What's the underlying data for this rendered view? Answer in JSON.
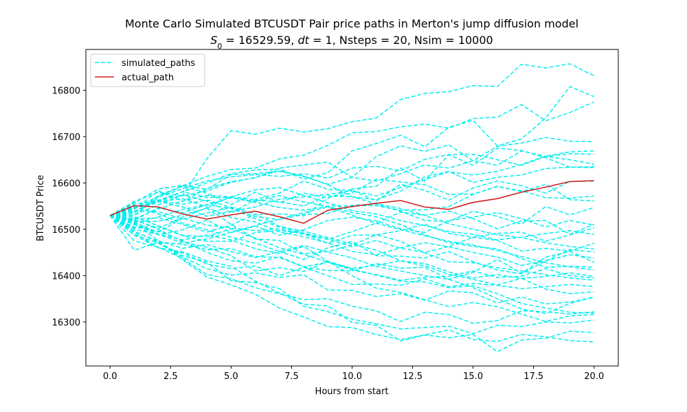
{
  "chart_data": {
    "type": "line",
    "title": "Monte Carlo Simulated BTCUSDT Pair price paths in Merton's jump diffusion model",
    "subtitle": {
      "s0_symbol": "S",
      "s0_sub": "0",
      "s0_value": " = 16529.59, ",
      "dt_symbol": "dt",
      "rest": " = 1, Nsteps = 20, Nsim = 10000"
    },
    "xlabel": "Hours from start",
    "ylabel": "BTCUSDT Price",
    "xlim": [
      -1,
      21
    ],
    "ylim": [
      16205,
      16888
    ],
    "xticks": [
      0,
      2.5,
      5,
      7.5,
      10,
      12.5,
      15,
      17.5,
      20
    ],
    "xtick_labels": [
      "0.0",
      "2.5",
      "5.0",
      "7.5",
      "10.0",
      "12.5",
      "15.0",
      "17.5",
      "20.0"
    ],
    "yticks": [
      16300,
      16400,
      16500,
      16600,
      16700,
      16800
    ],
    "ytick_labels": [
      "16300",
      "16400",
      "16500",
      "16600",
      "16700",
      "16800"
    ],
    "legend": {
      "position": "top-left",
      "entries": [
        {
          "label": "simulated_paths",
          "color": "#00f0f0",
          "style": "dashed"
        },
        {
          "label": "actual_path",
          "color": "#d62020",
          "style": "solid"
        }
      ]
    },
    "colors": {
      "simulated": "#00eeee",
      "actual": "#d21f1f"
    },
    "x": [
      0,
      1,
      2,
      3,
      4,
      5,
      6,
      7,
      8,
      9,
      10,
      11,
      12,
      13,
      14,
      15,
      16,
      17,
      18,
      19,
      20
    ],
    "series": [
      {
        "name": "actual_path",
        "values": [
          16529.59,
          16551,
          16548,
          16533,
          16522,
          16531,
          16539,
          16527,
          16513,
          16541,
          16549,
          16556,
          16562,
          16548,
          16543,
          16558,
          16566,
          16580,
          16591,
          16603,
          16605
        ]
      },
      {
        "name": "simulated_paths",
        "values": [
          16529.59,
          16543,
          16583,
          16560,
          16588,
          16603,
          16611,
          16632,
          16639,
          16645,
          16612,
          16657,
          16680,
          16668,
          16682,
          16648,
          16679,
          16686,
          16698,
          16690,
          16689
        ]
      },
      {
        "name": "simulated_paths",
        "values": [
          16529.59,
          16548,
          16562,
          16573,
          16652,
          16713,
          16705,
          16718,
          16710,
          16717,
          16732,
          16740,
          16780,
          16793,
          16797,
          16810,
          16808,
          16856,
          16848,
          16857,
          16831
        ]
      },
      {
        "name": "simulated_paths",
        "values": [
          16529.59,
          16535,
          16573,
          16594,
          16614,
          16629,
          16632,
          16652,
          16660,
          16681,
          16708,
          16711,
          16721,
          16727,
          16718,
          16739,
          16742,
          16769,
          16734,
          16752,
          16775
        ]
      },
      {
        "name": "simulated_paths",
        "values": [
          16529.59,
          16539,
          16559,
          16581,
          16600,
          16620,
          16628,
          16630,
          16608,
          16622,
          16669,
          16685,
          16703,
          16678,
          16720,
          16735,
          16680,
          16695,
          16740,
          16808,
          16786
        ]
      },
      {
        "name": "simulated_paths",
        "values": [
          16529.59,
          16530,
          16569,
          16588,
          16604,
          16613,
          16618,
          16614,
          16620,
          16610,
          16632,
          16636,
          16626,
          16651,
          16661,
          16638,
          16675,
          16670,
          16654,
          16634,
          16635
        ]
      },
      {
        "name": "simulated_paths",
        "values": [
          16529.59,
          16522,
          16525,
          16510,
          16494,
          16509,
          16532,
          16533,
          16529,
          16567,
          16587,
          16593,
          16632,
          16604,
          16661,
          16662,
          16650,
          16638,
          16657,
          16650,
          16640
        ]
      },
      {
        "name": "simulated_paths",
        "values": [
          16529.59,
          16546,
          16571,
          16593,
          16578,
          16553,
          16580,
          16557,
          16578,
          16568,
          16578,
          16608,
          16602,
          16596,
          16575,
          16576,
          16592,
          16583,
          16568,
          16567,
          16572
        ]
      },
      {
        "name": "simulated_paths",
        "values": [
          16529.59,
          16520,
          16546,
          16536,
          16553,
          16568,
          16558,
          16547,
          16541,
          16550,
          16551,
          16551,
          16541,
          16542,
          16549,
          16575,
          16593,
          16581,
          16597,
          16564,
          16561
        ]
      },
      {
        "name": "simulated_paths",
        "values": [
          16529.59,
          16548,
          16561,
          16554,
          16563,
          16547,
          16527,
          16521,
          16532,
          16534,
          16552,
          16554,
          16539,
          16519,
          16517,
          16539,
          16528,
          16511,
          16549,
          16531,
          16547
        ]
      },
      {
        "name": "simulated_paths",
        "values": [
          16529.59,
          16511,
          16494,
          16524,
          16509,
          16503,
          16497,
          16501,
          16489,
          16478,
          16495,
          16513,
          16537,
          16530,
          16539,
          16523,
          16501,
          16518,
          16519,
          16489,
          16511
        ]
      },
      {
        "name": "simulated_paths",
        "values": [
          16529.59,
          16503,
          16507,
          16486,
          16474,
          16474,
          16493,
          16497,
          16492,
          16479,
          16462,
          16476,
          16459,
          16450,
          16463,
          16483,
          16491,
          16494,
          16474,
          16488,
          16503
        ]
      },
      {
        "name": "simulated_paths",
        "values": [
          16529.59,
          16517,
          16517,
          16531,
          16545,
          16511,
          16479,
          16476,
          16447,
          16452,
          16466,
          16488,
          16497,
          16511,
          16491,
          16483,
          16476,
          16453,
          16459,
          16453,
          16470
        ]
      },
      {
        "name": "simulated_paths",
        "values": [
          16529.59,
          16515,
          16475,
          16459,
          16467,
          16452,
          16439,
          16452,
          16435,
          16460,
          16474,
          16443,
          16442,
          16438,
          16452,
          16430,
          16412,
          16404,
          16432,
          16456,
          16451
        ]
      },
      {
        "name": "simulated_paths",
        "values": [
          16529.59,
          16496,
          16472,
          16468,
          16456,
          16458,
          16441,
          16439,
          16419,
          16411,
          16410,
          16426,
          16416,
          16418,
          16392,
          16407,
          16435,
          16405,
          16440,
          16452,
          16429
        ]
      },
      {
        "name": "simulated_paths",
        "values": [
          16529.59,
          16505,
          16496,
          16475,
          16450,
          16432,
          16427,
          16441,
          16419,
          16429,
          16412,
          16402,
          16390,
          16396,
          16399,
          16410,
          16396,
          16399,
          16415,
          16400,
          16395
        ]
      },
      {
        "name": "simulated_paths",
        "values": [
          16529.59,
          16493,
          16460,
          16449,
          16425,
          16415,
          16421,
          16400,
          16418,
          16400,
          16381,
          16382,
          16379,
          16393,
          16376,
          16383,
          16379,
          16372,
          16376,
          16381,
          16376
        ]
      },
      {
        "name": "simulated_paths",
        "values": [
          16529.59,
          16488,
          16470,
          16440,
          16415,
          16401,
          16406,
          16396,
          16402,
          16369,
          16368,
          16355,
          16361,
          16347,
          16367,
          16363,
          16341,
          16354,
          16339,
          16343,
          16353
        ]
      },
      {
        "name": "simulated_paths",
        "values": [
          16529.59,
          16475,
          16461,
          16437,
          16402,
          16393,
          16374,
          16361,
          16348,
          16350,
          16334,
          16324,
          16301,
          16321,
          16316,
          16297,
          16303,
          16324,
          16322,
          16317,
          16322
        ]
      },
      {
        "name": "simulated_paths",
        "values": [
          16529.59,
          16455,
          16472,
          16443,
          16429,
          16389,
          16385,
          16372,
          16334,
          16322,
          16306,
          16296,
          16285,
          16288,
          16291,
          16275,
          16293,
          16290,
          16300,
          16298,
          16304
        ]
      },
      {
        "name": "simulated_paths",
        "values": [
          16529.59,
          16487,
          16460,
          16451,
          16432,
          16420,
          16388,
          16362,
          16338,
          16335,
          16299,
          16293,
          16259,
          16272,
          16266,
          16273,
          16236,
          16261,
          16265,
          16280,
          16277
        ]
      },
      {
        "name": "simulated_paths",
        "values": [
          16529.59,
          16495,
          16474,
          16434,
          16397,
          16380,
          16360,
          16330,
          16311,
          16290,
          16288,
          16273,
          16262,
          16272,
          16283,
          16262,
          16258,
          16273,
          16268,
          16260,
          16257
        ]
      },
      {
        "name": "simulated_paths",
        "values": [
          16529.59,
          16531,
          16553,
          16574,
          16561,
          16535,
          16564,
          16578,
          16604,
          16586,
          16584,
          16561,
          16597,
          16584,
          16563,
          16589,
          16604,
          16594,
          16578,
          16603,
          16604
        ]
      },
      {
        "name": "simulated_paths",
        "values": [
          16529.59,
          16557,
          16587,
          16595,
          16586,
          16618,
          16620,
          16625,
          16614,
          16597,
          16612,
          16604,
          16620,
          16639,
          16632,
          16648,
          16638,
          16669,
          16657,
          16663,
          16662
        ]
      },
      {
        "name": "simulated_paths",
        "values": [
          16529.59,
          16520,
          16502,
          16526,
          16546,
          16571,
          16563,
          16559,
          16550,
          16572,
          16570,
          16564,
          16582,
          16613,
          16625,
          16601,
          16612,
          16617,
          16631,
          16634,
          16633
        ]
      },
      {
        "name": "simulated_paths",
        "values": [
          16529.59,
          16510,
          16488,
          16499,
          16520,
          16493,
          16507,
          16487,
          16499,
          16519,
          16526,
          16518,
          16501,
          16493,
          16519,
          16526,
          16536,
          16523,
          16505,
          16519,
          16509
        ]
      },
      {
        "name": "simulated_paths",
        "values": [
          16529.59,
          16545,
          16560,
          16566,
          16548,
          16525,
          16516,
          16494,
          16484,
          16470,
          16487,
          16488,
          16474,
          16449,
          16430,
          16428,
          16417,
          16410,
          16402,
          16395,
          16390
        ]
      },
      {
        "name": "simulated_paths",
        "values": [
          16529.59,
          16554,
          16563,
          16581,
          16569,
          16568,
          16560,
          16573,
          16559,
          16549,
          16536,
          16527,
          16510,
          16488,
          16471,
          16463,
          16458,
          16437,
          16418,
          16420,
          16418
        ]
      },
      {
        "name": "simulated_paths",
        "values": [
          16529.59,
          16500,
          16489,
          16477,
          16488,
          16477,
          16458,
          16448,
          16463,
          16431,
          16414,
          16401,
          16388,
          16386,
          16374,
          16378,
          16361,
          16340,
          16330,
          16321,
          16319
        ]
      },
      {
        "name": "simulated_paths",
        "values": [
          16529.59,
          16521,
          16500,
          16473,
          16461,
          16443,
          16410,
          16417,
          16409,
          16431,
          16400,
          16373,
          16364,
          16348,
          16333,
          16342,
          16333,
          16317,
          16301,
          16313,
          16316
        ]
      },
      {
        "name": "simulated_paths",
        "values": [
          16529.59,
          16560,
          16580,
          16572,
          16583,
          16601,
          16612,
          16626,
          16615,
          16596,
          16570,
          16555,
          16545,
          16530,
          16512,
          16500,
          16488,
          16482,
          16471,
          16463,
          16457
        ]
      },
      {
        "name": "simulated_paths",
        "values": [
          16529.59,
          16540,
          16538,
          16522,
          16535,
          16548,
          16533,
          16506,
          16496,
          16482,
          16468,
          16455,
          16432,
          16426,
          16408,
          16395,
          16402,
          16394,
          16371,
          16361,
          16365
        ]
      },
      {
        "name": "simulated_paths",
        "values": [
          16529.59,
          16527,
          16507,
          16487,
          16484,
          16501,
          16481,
          16460,
          16446,
          16429,
          16416,
          16422,
          16432,
          16421,
          16403,
          16392,
          16380,
          16394,
          16398,
          16406,
          16398
        ]
      },
      {
        "name": "simulated_paths",
        "values": [
          16529.59,
          16538,
          16560,
          16548,
          16528,
          16539,
          16548,
          16565,
          16570,
          16575,
          16583,
          16572,
          16590,
          16607,
          16624,
          16617,
          16625,
          16640,
          16658,
          16667,
          16669
        ]
      },
      {
        "name": "simulated_paths",
        "values": [
          16529.59,
          16512,
          16527,
          16543,
          16553,
          16545,
          16523,
          16505,
          16491,
          16470,
          16452,
          16445,
          16460,
          16471,
          16462,
          16450,
          16440,
          16422,
          16432,
          16445,
          16438
        ]
      },
      {
        "name": "simulated_paths",
        "values": [
          16529.59,
          16549,
          16533,
          16513,
          16499,
          16483,
          16470,
          16452,
          16465,
          16451,
          16438,
          16420,
          16410,
          16400,
          16392,
          16374,
          16350,
          16328,
          16318,
          16340,
          16354
        ]
      },
      {
        "name": "simulated_paths",
        "values": [
          16529.59,
          16523,
          16544,
          16561,
          16573,
          16570,
          16585,
          16590,
          16573,
          16557,
          16540,
          16533,
          16519,
          16508,
          16495,
          16489,
          16477,
          16483,
          16491,
          16497,
          16489
        ]
      },
      {
        "name": "simulated_paths",
        "values": [
          16529.59,
          16517,
          16489,
          16470,
          16479,
          16494,
          16508,
          16522,
          16536,
          16548,
          16530,
          16513,
          16499,
          16486,
          16474,
          16466,
          16454,
          16441,
          16428,
          16419,
          16412
        ]
      }
    ]
  }
}
